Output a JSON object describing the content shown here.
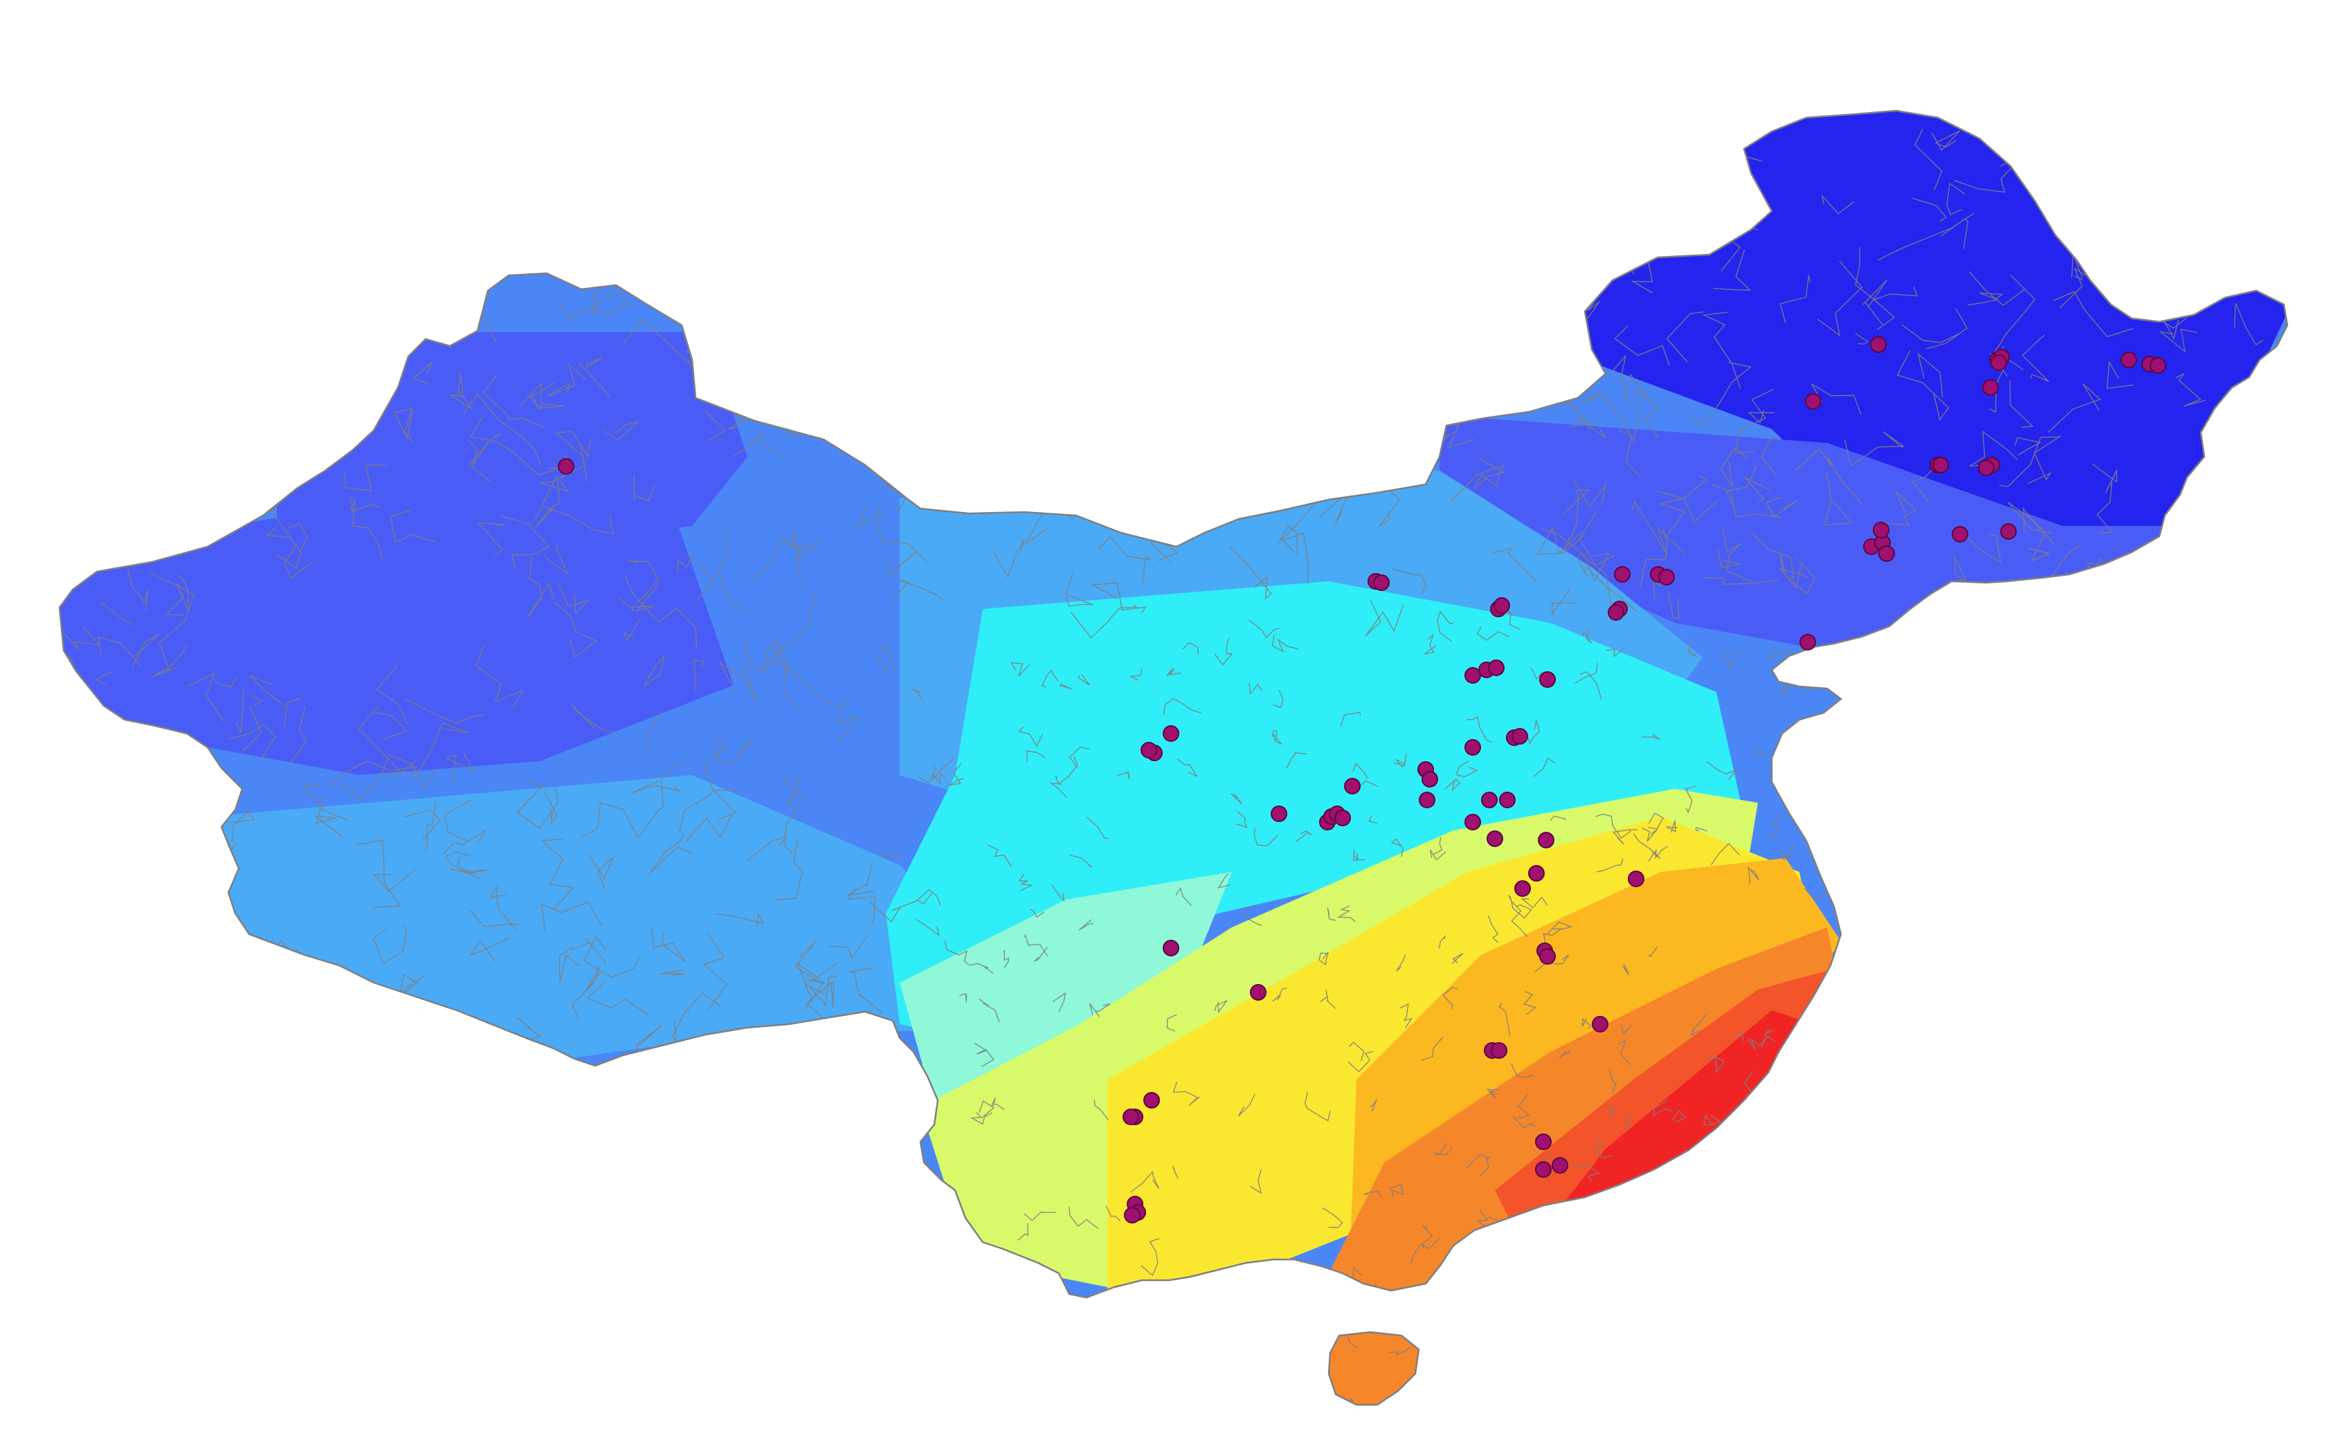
{
  "map": {
    "colors": {
      "zone_1_darkblue": "#2424ee",
      "zone_2_blue": "#4a5cf6",
      "zone_3_midblue": "#4a86f6",
      "zone_4_lightblue": "#4aaaf6",
      "zone_5_cyan": "#30eef8",
      "zone_6_aqua": "#8ef8d8",
      "zone_7_yellowgreen": "#d8fa6a",
      "zone_8_yellow": "#fae830",
      "zone_9_amber": "#fbb820",
      "zone_10_orange": "#f6862a",
      "zone_11_redorange": "#f4542a",
      "zone_12_red": "#f02424",
      "boundary_lines": "#7f7f7f",
      "site_marker_fill": "#a0106e",
      "site_marker_stroke": "#5a0840",
      "sea": "#ffffff"
    },
    "site_marker_icon": "circle-dot",
    "site_count": 71
  }
}
